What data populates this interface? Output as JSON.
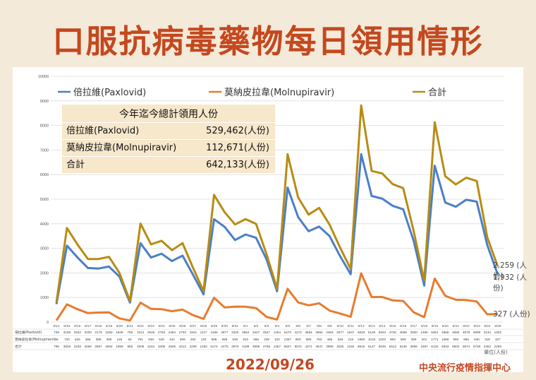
{
  "page": {
    "title": "口服抗病毒藥物每日領用情形",
    "date": "2022/09/26",
    "org": "中央流行疫情指揮中心",
    "unit_note": "單位(人份)"
  },
  "summary": {
    "header": "今年迄今總計領用人份",
    "rows": [
      {
        "name": "倍拉維(Paxlovid)",
        "value": "529,462(人份)"
      },
      {
        "name": "莫納皮拉韋(Molnupiravir)",
        "value": "112,671(人份)"
      },
      {
        "name": "合計",
        "value": "642,133(人份)"
      }
    ]
  },
  "end_labels": {
    "total": "2,259 (人份)",
    "pax": "1,932 (人份)",
    "mol": "327 (人份)"
  },
  "chart_data": {
    "type": "line",
    "title": "口服抗病毒藥物每日領用情形",
    "xlabel": "",
    "ylabel": "",
    "ylim": [
      0,
      10000
    ],
    "yticks": [
      0,
      1000,
      2000,
      3000,
      4000,
      5000,
      6000,
      7000,
      8000,
      9000,
      10000
    ],
    "grid": true,
    "legend": "top",
    "categories": [
      "8/14",
      "8/15",
      "8/16",
      "8/17",
      "8/18",
      "8/19",
      "8/20",
      "8/21",
      "8/22",
      "8/23",
      "8/24",
      "8/25",
      "8/26",
      "8/27",
      "8/28",
      "8/29",
      "8/30",
      "8/31",
      "9/1",
      "9/2",
      "9/3",
      "9/4",
      "9/5",
      "9/6",
      "9/7",
      "9/8",
      "9/9",
      "9/10",
      "9/11",
      "9/12",
      "9/13",
      "9/14",
      "9/15",
      "9/16",
      "9/17",
      "9/18",
      "9/19",
      "9/20",
      "9/21",
      "9/22",
      "9/23",
      "9/24",
      "9/25"
    ],
    "table_labels": [
      "倍拉維(Paxlovid)",
      "莫納皮拉韋(Molnupiravir)",
      "合計"
    ],
    "series": [
      {
        "name": "倍拉維(Paxlovid)",
        "color": "#4a7fc7",
        "values": [
          729,
          3108,
          2632,
          2200,
          2179,
          2259,
          1849,
          793,
          3214,
          2626,
          2783,
          2484,
          2703,
          1924,
          1127,
          4186,
          3877,
          3340,
          3564,
          3427,
          2547,
          1254,
          5470,
          4272,
          3694,
          3884,
          3493,
          2677,
          1947,
          6833,
          5129,
          5024,
          4730,
          4589,
          3300,
          1486,
          6361,
          4865,
          4693,
          4978,
          4899,
          3134,
          1932
        ]
      },
      {
        "name": "莫納皮拉韋(Molnupiravir)",
        "color": "#e87b2e",
        "values": [
          66,
          720,
          526,
          366,
          388,
          395,
          149,
          62,
          791,
          538,
          525,
          442,
          509,
          282,
          133,
          988,
          598,
          630,
          623,
          568,
          209,
          103,
          1357,
          800,
          680,
          763,
          466,
          349,
          215,
          1983,
          1018,
          1022,
          883,
          859,
          399,
          201,
          1771,
          1068,
          909,
          896,
          840,
          318,
          327
        ]
      },
      {
        "name": "合計",
        "color": "#b88c12",
        "values": [
          795,
          3828,
          3158,
          2566,
          2567,
          2654,
          1998,
          855,
          4005,
          3164,
          3308,
          2926,
          3212,
          2206,
          1260,
          5174,
          4475,
          3970,
          4189,
          3995,
          2756,
          1357,
          6827,
          5072,
          4374,
          4647,
          3959,
          3026,
          2162,
          8816,
          6147,
          6046,
          5613,
          5448,
          3699,
          1687,
          8132,
          5933,
          5602,
          5874,
          5739,
          3452,
          2259
        ]
      }
    ]
  }
}
